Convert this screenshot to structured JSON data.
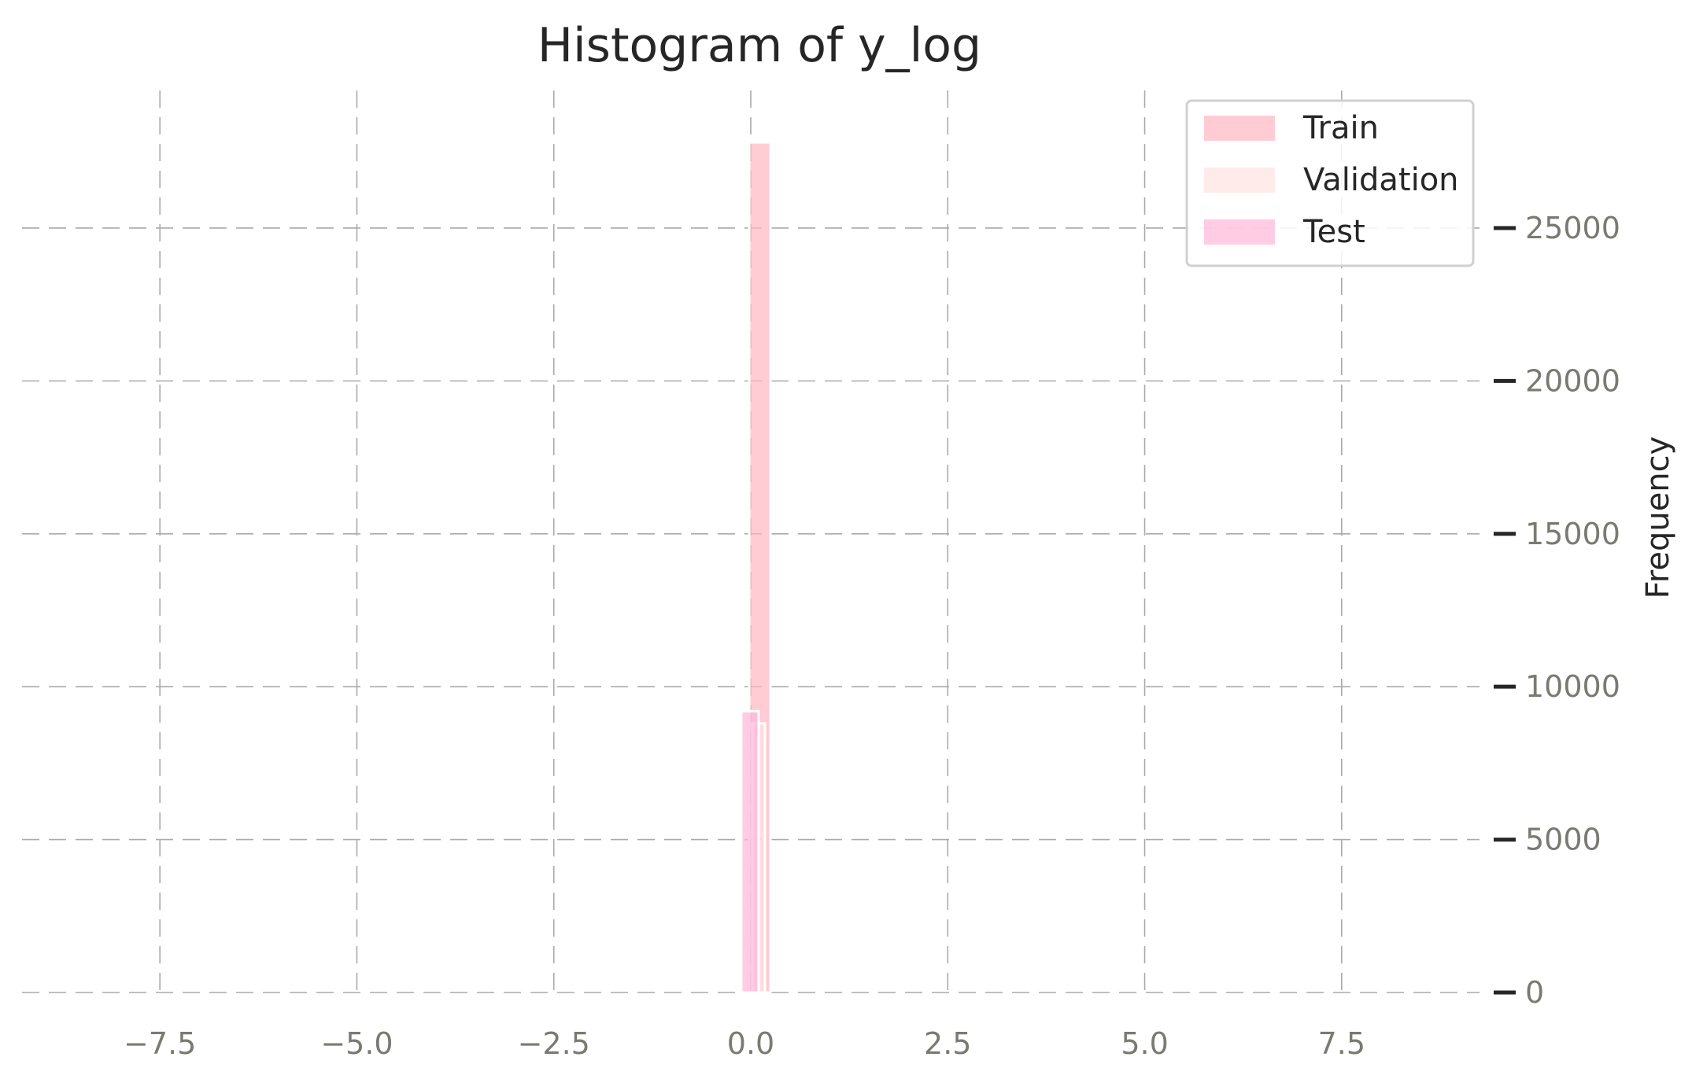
{
  "chart_data": {
    "type": "bar",
    "title": "Histogram of y_log",
    "xlabel": "",
    "ylabel": "Frequency",
    "xlim": [
      -9.25,
      9.25
    ],
    "ylim": [
      0,
      29500
    ],
    "x_ticks": [
      -7.5,
      -5.0,
      -2.5,
      0.0,
      2.5,
      5.0,
      7.5
    ],
    "x_tick_labels": [
      "−7.5",
      "−5.0",
      "−2.5",
      "0.0",
      "2.5",
      "5.0",
      "7.5"
    ],
    "y_ticks": [
      0,
      5000,
      10000,
      15000,
      20000,
      25000
    ],
    "y_tick_labels": [
      "0",
      "5000",
      "10000",
      "15000",
      "20000",
      "25000"
    ],
    "y_axis_side": "right",
    "grid": true,
    "legend_position": "top-right",
    "series": [
      {
        "name": "Train",
        "color": "#ffb6c1",
        "opacity": 0.7,
        "bins": [
          {
            "x0": -0.02,
            "x1": 0.25,
            "value": 27800
          }
        ]
      },
      {
        "name": "Validation",
        "color": "#ffe4e1",
        "opacity": 0.7,
        "bins": [
          {
            "x0": 0.02,
            "x1": 0.18,
            "value": 8800
          }
        ]
      },
      {
        "name": "Test",
        "color": "#ffb6d9",
        "opacity": 0.7,
        "bins": [
          {
            "x0": -0.12,
            "x1": 0.1,
            "value": 9200
          }
        ]
      }
    ]
  }
}
